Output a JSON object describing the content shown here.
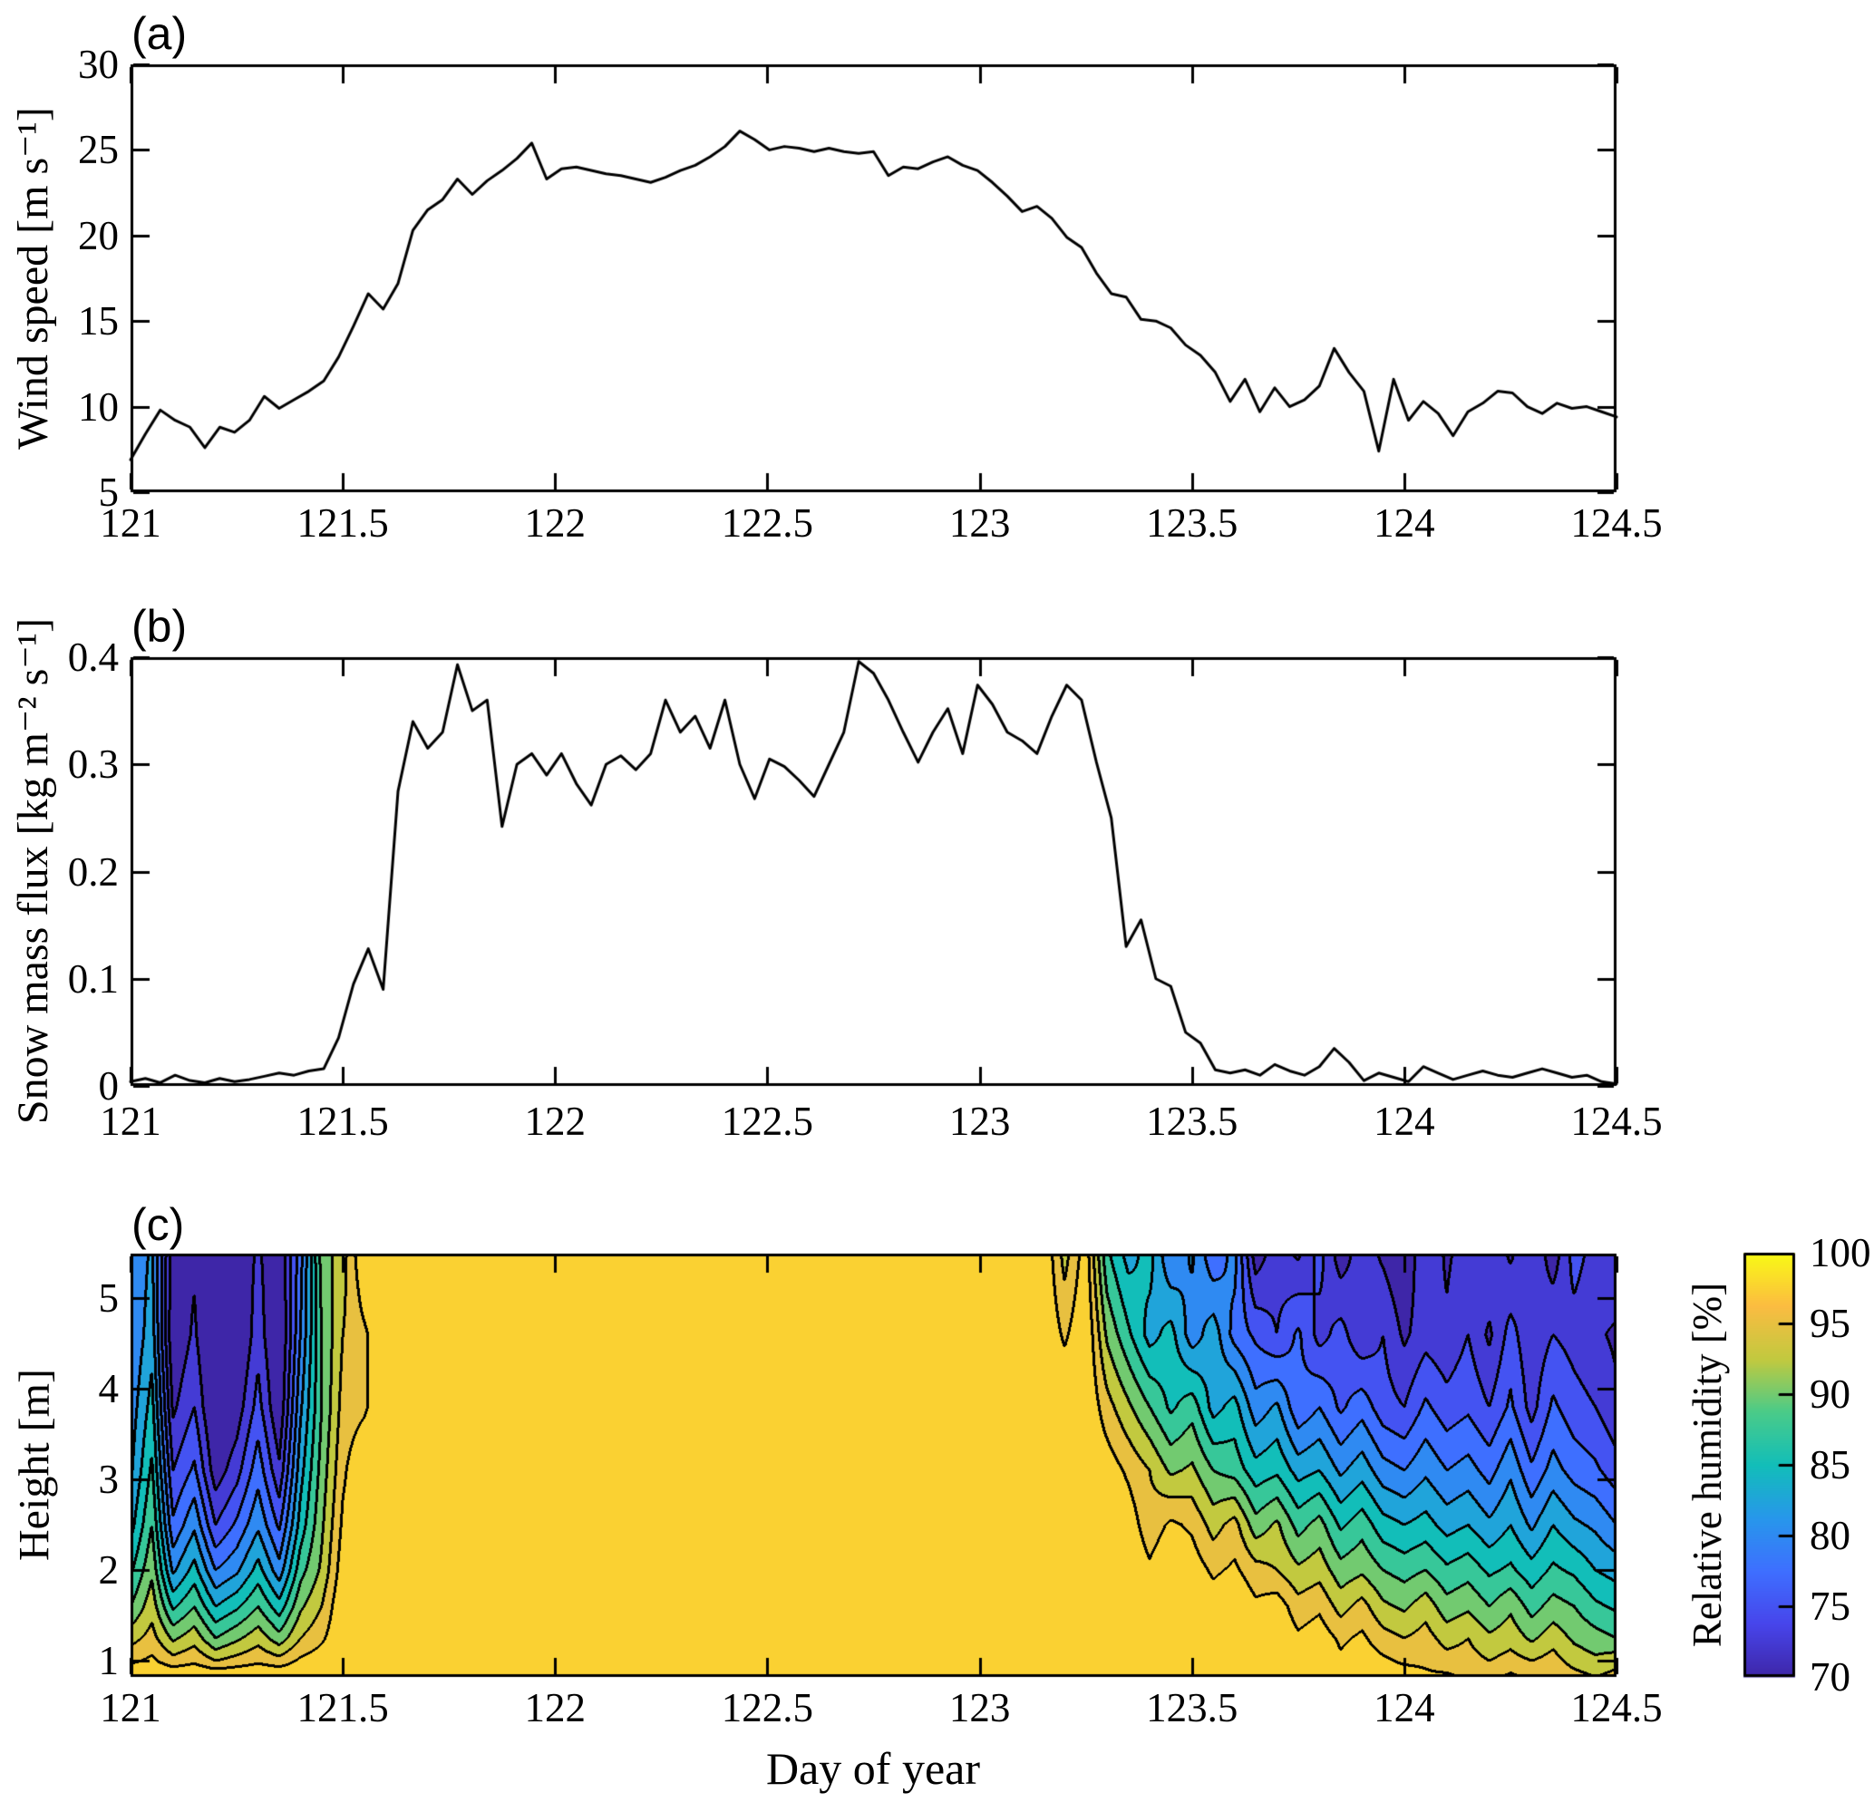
{
  "figure": {
    "background": "#ffffff",
    "line_color": "#000000",
    "xlabel": "Day of year"
  },
  "chart_data": [
    {
      "id": "a",
      "type": "line",
      "panel_label": "(a)",
      "ylabel": "Wind speed [m s⁻¹]",
      "xlabel": "",
      "xlim": [
        121,
        124.5
      ],
      "ylim": [
        5,
        30
      ],
      "xticks": [
        121,
        121.5,
        122,
        122.5,
        123,
        123.5,
        124,
        124.5
      ],
      "xtick_labels": [
        "121",
        "121.5",
        "122",
        "122.5",
        "123",
        "123.5",
        "124",
        "124.5"
      ],
      "yticks": [
        5,
        10,
        15,
        20,
        25,
        30
      ],
      "ytick_labels": [
        "5",
        "10",
        "15",
        "20",
        "25",
        "30"
      ],
      "x_start": 121,
      "x_step": 0.035,
      "line_color": "#000000",
      "values": [
        6.9,
        8.4,
        9.8,
        9.2,
        8.8,
        7.6,
        8.8,
        8.5,
        9.2,
        10.6,
        9.9,
        10.4,
        10.9,
        11.5,
        12.9,
        14.7,
        16.6,
        15.7,
        17.2,
        20.3,
        21.5,
        22.1,
        23.3,
        22.4,
        23.2,
        23.8,
        24.5,
        25.4,
        23.3,
        23.9,
        24.0,
        23.8,
        23.6,
        23.5,
        23.3,
        23.1,
        23.4,
        23.8,
        24.1,
        24.6,
        25.2,
        26.1,
        25.6,
        25.0,
        25.2,
        25.1,
        24.9,
        25.1,
        24.9,
        24.8,
        24.9,
        23.5,
        24.0,
        23.9,
        24.3,
        24.6,
        24.1,
        23.8,
        23.1,
        22.3,
        21.4,
        21.7,
        21.0,
        19.9,
        19.3,
        17.8,
        16.6,
        16.4,
        15.1,
        15.0,
        14.6,
        13.6,
        13.0,
        12.0,
        10.3,
        11.6,
        9.7,
        11.1,
        10.0,
        10.4,
        11.2,
        13.4,
        12.0,
        10.9,
        7.4,
        11.6,
        9.2,
        10.3,
        9.6,
        8.3,
        9.7,
        10.2,
        10.9,
        10.8,
        10.0,
        9.6,
        10.2,
        9.9,
        10.0,
        9.7,
        9.4
      ]
    },
    {
      "id": "b",
      "type": "line",
      "panel_label": "(b)",
      "ylabel": "Snow mass flux [kg m⁻² s⁻¹]",
      "xlabel": "",
      "xlim": [
        121,
        124.5
      ],
      "ylim": [
        0,
        0.4
      ],
      "xticks": [
        121,
        121.5,
        122,
        122.5,
        123,
        123.5,
        124,
        124.5
      ],
      "xtick_labels": [
        "121",
        "121.5",
        "122",
        "122.5",
        "123",
        "123.5",
        "124",
        "124.5"
      ],
      "yticks": [
        0,
        0.1,
        0.2,
        0.3,
        0.4
      ],
      "ytick_labels": [
        "0",
        "0.1",
        "0.2",
        "0.3",
        "0.4"
      ],
      "x_start": 121,
      "x_step": 0.035,
      "line_color": "#000000",
      "values": [
        0.004,
        0.007,
        0.003,
        0.01,
        0.005,
        0.003,
        0.007,
        0.004,
        0.006,
        0.009,
        0.012,
        0.01,
        0.014,
        0.016,
        0.045,
        0.095,
        0.128,
        0.09,
        0.275,
        0.34,
        0.315,
        0.33,
        0.393,
        0.35,
        0.36,
        0.242,
        0.3,
        0.31,
        0.29,
        0.31,
        0.282,
        0.262,
        0.3,
        0.308,
        0.295,
        0.31,
        0.36,
        0.33,
        0.345,
        0.315,
        0.36,
        0.3,
        0.268,
        0.305,
        0.298,
        0.285,
        0.27,
        0.3,
        0.33,
        0.396,
        0.385,
        0.36,
        0.33,
        0.302,
        0.33,
        0.352,
        0.31,
        0.374,
        0.356,
        0.33,
        0.322,
        0.31,
        0.345,
        0.374,
        0.36,
        0.302,
        0.25,
        0.13,
        0.155,
        0.1,
        0.093,
        0.05,
        0.04,
        0.015,
        0.012,
        0.015,
        0.01,
        0.02,
        0.014,
        0.01,
        0.018,
        0.035,
        0.022,
        0.005,
        0.012,
        0.008,
        0.004,
        0.018,
        0.012,
        0.006,
        0.01,
        0.014,
        0.01,
        0.008,
        0.012,
        0.016,
        0.012,
        0.008,
        0.01,
        0.004,
        0.002
      ]
    },
    {
      "id": "c",
      "type": "heatmap",
      "panel_label": "(c)",
      "ylabel": "Height [m]",
      "xlabel": "Day of year",
      "xlim": [
        121,
        124.5
      ],
      "ylim": [
        0.82,
        5.49
      ],
      "xticks": [
        121,
        121.5,
        122,
        122.5,
        123,
        123.5,
        124,
        124.5
      ],
      "xtick_labels": [
        "121",
        "121.5",
        "122",
        "122.5",
        "123",
        "123.5",
        "124",
        "124.5"
      ],
      "yticks": [
        1,
        2,
        3,
        4,
        5
      ],
      "ytick_labels": [
        "1",
        "2",
        "3",
        "4",
        "5"
      ],
      "x_start": 121,
      "x_step": 0.05,
      "heights": [
        0.82,
        1.0,
        1.25,
        1.6,
        2.0,
        2.5,
        3.1,
        3.8,
        4.6,
        5.49
      ],
      "contour_interval": 2.5,
      "colorbar": {
        "label": "Relative humidity [%]",
        "range": [
          70,
          100
        ],
        "ticks": [
          70,
          75,
          80,
          85,
          90,
          95,
          100
        ],
        "tick_labels": [
          "70",
          "75",
          "80",
          "85",
          "90",
          "95",
          "100"
        ],
        "colormap": "parula",
        "parula_anchors": [
          [
            62,
            38,
            168
          ],
          [
            71,
            69,
            235
          ],
          [
            62,
            111,
            255
          ],
          [
            39,
            151,
            235
          ],
          [
            18,
            190,
            185
          ],
          [
            74,
            203,
            137
          ],
          [
            194,
            201,
            63
          ],
          [
            251,
            188,
            65
          ],
          [
            249,
            251,
            21
          ]
        ]
      },
      "rh_values": [
        [
          100,
          97,
          94,
          90,
          87,
          84,
          82,
          81,
          80,
          80
        ],
        [
          100,
          98,
          96,
          94,
          92,
          90,
          88,
          86,
          84,
          83
        ],
        [
          100,
          96,
          92,
          87,
          82,
          78,
          75,
          72,
          70,
          71
        ],
        [
          100,
          97,
          94,
          90,
          86,
          82,
          78,
          75,
          73,
          72
        ],
        [
          100,
          95,
          90,
          85,
          80,
          75,
          71,
          69,
          68,
          69
        ],
        [
          100,
          96,
          92,
          87,
          82,
          78,
          74,
          71,
          69,
          70
        ],
        [
          100,
          97,
          94,
          90,
          86,
          82,
          79,
          76,
          74,
          73
        ],
        [
          100,
          96,
          91,
          86,
          81,
          77,
          73,
          70,
          69,
          70
        ],
        [
          100,
          98,
          95,
          92,
          89,
          86,
          84,
          82,
          80,
          79
        ],
        [
          100,
          99,
          97,
          95,
          93,
          92,
          91,
          90,
          90,
          91
        ],
        [
          100,
          100,
          100,
          100,
          99,
          98,
          97,
          96,
          95,
          94
        ],
        [
          100,
          100,
          100,
          100,
          100,
          100,
          100,
          97,
          97,
          100
        ],
        [
          100,
          100,
          100,
          100,
          100,
          100,
          100,
          100,
          100,
          100
        ],
        [
          100,
          100,
          100,
          100,
          100,
          100,
          100,
          100,
          100,
          100
        ],
        [
          100,
          100,
          100,
          100,
          100,
          100,
          100,
          100,
          100,
          100
        ],
        [
          100,
          100,
          100,
          100,
          100,
          100,
          100,
          100,
          100,
          100
        ],
        [
          100,
          100,
          100,
          100,
          100,
          100,
          100,
          100,
          100,
          100
        ],
        [
          100,
          100,
          100,
          100,
          100,
          100,
          100,
          100,
          100,
          100
        ],
        [
          100,
          100,
          100,
          100,
          100,
          100,
          100,
          100,
          100,
          100
        ],
        [
          100,
          100,
          100,
          100,
          100,
          100,
          100,
          100,
          100,
          100
        ],
        [
          100,
          100,
          100,
          100,
          100,
          100,
          100,
          100,
          100,
          100
        ],
        [
          100,
          100,
          100,
          100,
          100,
          100,
          100,
          100,
          100,
          100
        ],
        [
          100,
          100,
          100,
          100,
          100,
          100,
          100,
          100,
          100,
          100
        ],
        [
          100,
          100,
          100,
          100,
          100,
          100,
          100,
          100,
          100,
          100
        ],
        [
          100,
          100,
          100,
          100,
          100,
          100,
          100,
          100,
          100,
          100
        ],
        [
          100,
          100,
          100,
          100,
          100,
          100,
          100,
          100,
          100,
          100
        ],
        [
          100,
          100,
          100,
          100,
          100,
          100,
          100,
          100,
          100,
          100
        ],
        [
          100,
          100,
          100,
          100,
          100,
          100,
          100,
          100,
          100,
          100
        ],
        [
          100,
          100,
          100,
          100,
          100,
          100,
          100,
          100,
          100,
          100
        ],
        [
          100,
          100,
          100,
          100,
          100,
          100,
          100,
          100,
          100,
          100
        ],
        [
          100,
          100,
          100,
          100,
          100,
          100,
          100,
          100,
          100,
          100
        ],
        [
          100,
          100,
          100,
          100,
          100,
          100,
          100,
          100,
          100,
          100
        ],
        [
          100,
          100,
          100,
          100,
          100,
          100,
          100,
          100,
          100,
          100
        ],
        [
          100,
          100,
          100,
          100,
          100,
          100,
          100,
          100,
          100,
          100
        ],
        [
          100,
          100,
          100,
          100,
          100,
          100,
          100,
          100,
          100,
          100
        ],
        [
          100,
          100,
          100,
          100,
          100,
          100,
          100,
          100,
          100,
          100
        ],
        [
          100,
          100,
          100,
          100,
          100,
          100,
          100,
          100,
          100,
          100
        ],
        [
          100,
          100,
          100,
          100,
          100,
          100,
          100,
          100,
          100,
          100
        ],
        [
          100,
          100,
          100,
          100,
          100,
          100,
          100,
          100,
          100,
          100
        ],
        [
          100,
          100,
          100,
          100,
          100,
          100,
          100,
          100,
          100,
          100
        ],
        [
          100,
          100,
          100,
          100,
          100,
          100,
          100,
          100,
          100,
          100
        ],
        [
          100,
          100,
          100,
          100,
          100,
          100,
          100,
          100,
          100,
          100
        ],
        [
          100,
          100,
          100,
          100,
          100,
          100,
          100,
          100,
          100,
          100
        ],
        [
          100,
          100,
          100,
          100,
          100,
          100,
          100,
          100,
          100,
          100
        ],
        [
          100,
          100,
          100,
          100,
          100,
          100,
          100,
          100,
          97,
          94
        ],
        [
          100,
          100,
          100,
          100,
          100,
          100,
          100,
          100,
          100,
          99
        ],
        [
          100,
          100,
          100,
          100,
          100,
          100,
          99,
          96,
          92,
          88
        ],
        [
          100,
          100,
          100,
          100,
          100,
          99,
          97,
          93,
          88,
          84
        ],
        [
          100,
          100,
          100,
          100,
          98,
          96,
          95,
          90,
          84,
          86
        ],
        [
          100,
          100,
          100,
          100,
          100,
          98,
          92,
          87,
          86,
          80
        ],
        [
          100,
          100,
          100,
          100,
          99,
          97,
          93,
          89,
          81,
          83
        ],
        [
          100,
          100,
          100,
          99,
          97,
          94,
          90,
          84,
          84,
          78
        ],
        [
          100,
          100,
          100,
          100,
          98,
          96,
          89,
          86,
          79,
          81
        ],
        [
          100,
          100,
          99,
          98,
          96,
          91,
          86,
          81,
          77,
          71
        ],
        [
          100,
          100,
          100,
          99,
          95,
          93,
          87,
          83,
          75,
          74
        ],
        [
          100,
          99,
          98,
          96,
          93,
          89,
          84,
          78,
          78,
          72
        ],
        [
          100,
          100,
          99,
          97,
          94,
          91,
          85,
          80,
          74,
          76
        ],
        [
          99,
          98,
          97,
          94,
          91,
          87,
          82,
          77,
          76,
          71
        ],
        [
          100,
          99,
          98,
          96,
          92,
          89,
          84,
          79,
          73,
          74
        ],
        [
          99,
          98,
          96,
          93,
          90,
          86,
          81,
          76,
          75,
          72
        ],
        [
          99,
          97,
          95,
          92,
          89,
          85,
          80,
          75,
          72,
          70
        ],
        [
          98,
          97,
          96,
          94,
          90,
          86,
          82,
          78,
          74,
          75
        ],
        [
          98,
          96,
          94,
          91,
          88,
          84,
          80,
          76,
          73,
          72
        ],
        [
          97,
          96,
          95,
          92,
          89,
          85,
          81,
          77,
          75,
          74
        ],
        [
          97,
          95,
          93,
          90,
          87,
          83,
          79,
          75,
          72,
          75
        ],
        [
          98,
          96,
          94,
          92,
          88,
          85,
          82,
          78,
          76,
          72
        ],
        [
          97,
          95,
          92,
          89,
          86,
          82,
          78,
          74,
          73,
          75
        ],
        [
          97,
          96,
          94,
          91,
          88,
          85,
          81,
          78,
          75,
          71
        ],
        [
          96,
          94,
          92,
          90,
          87,
          83,
          79,
          76,
          74,
          76
        ],
        [
          95,
          93,
          91,
          88,
          85,
          82,
          78,
          75,
          73,
          74
        ],
        [
          96,
          94,
          90,
          87,
          84,
          80,
          76,
          73,
          72,
          75
        ]
      ]
    }
  ]
}
